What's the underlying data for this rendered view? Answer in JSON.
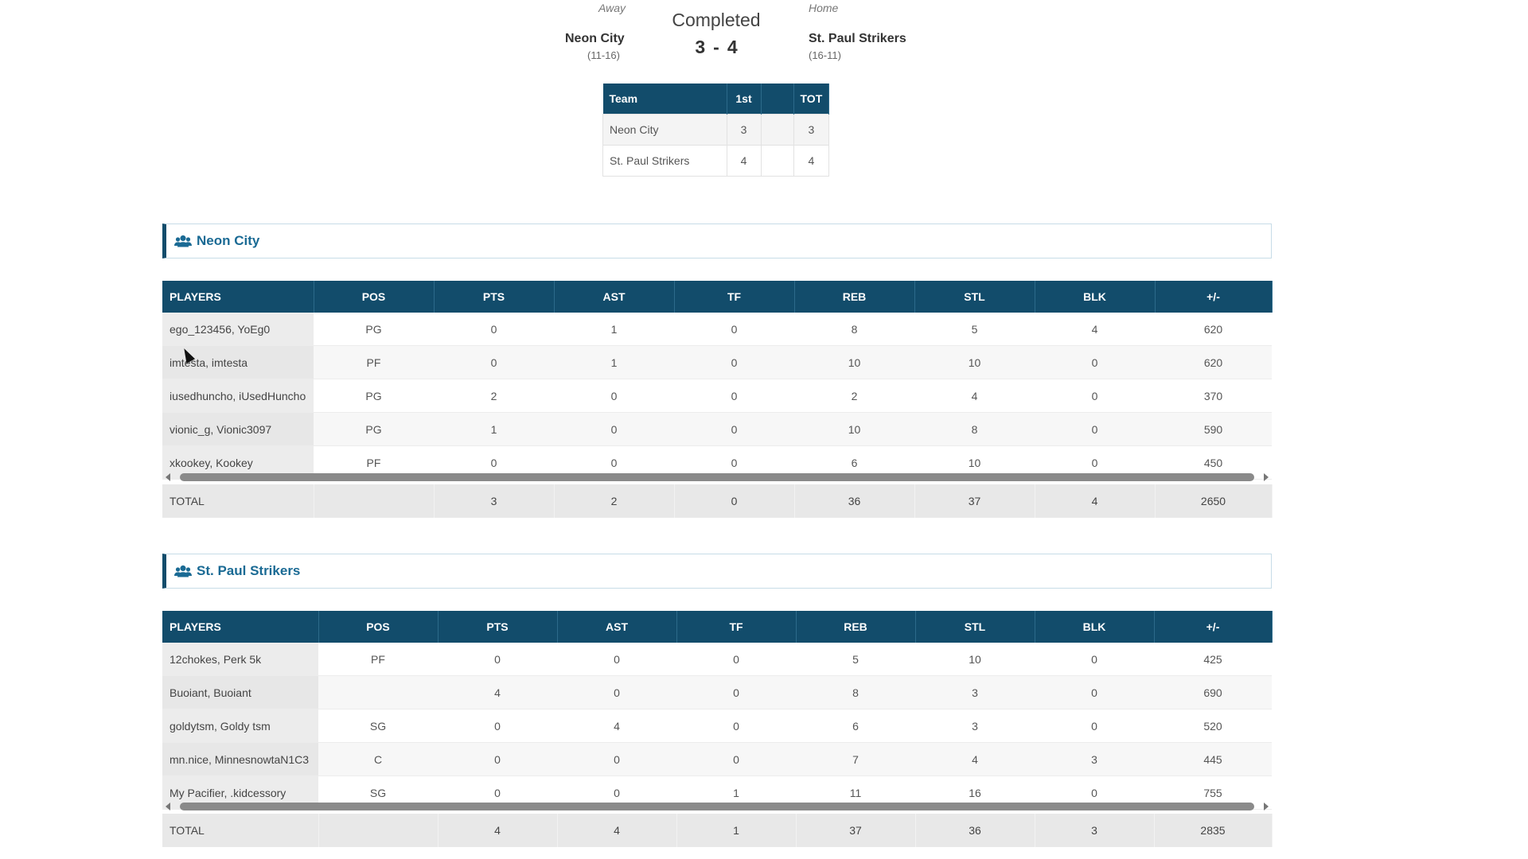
{
  "game": {
    "away_label": "Away",
    "home_label": "Home",
    "status": "Completed",
    "away_team": "Neon City",
    "away_record": "(11-16)",
    "home_team": "St. Paul Strikers",
    "home_record": "(16-11)",
    "away_score": "3",
    "home_score": "4",
    "score_sep": "-"
  },
  "linescore": {
    "headers": [
      "Team",
      "1st",
      "",
      "TOT"
    ],
    "rows": [
      [
        "Neon City",
        "3",
        "",
        "3"
      ],
      [
        "St. Paul Strikers",
        "4",
        "",
        "4"
      ]
    ]
  },
  "stat_headers": [
    "PLAYERS",
    "POS",
    "PTS",
    "AST",
    "TF",
    "REB",
    "STL",
    "BLK",
    "+/-"
  ],
  "teams": [
    {
      "name": "Neon City",
      "icon": "users-icon",
      "players": [
        [
          "ego_123456, YoEg0",
          "PG",
          "0",
          "1",
          "0",
          "8",
          "5",
          "4",
          "620"
        ],
        [
          "imtesta, imtesta",
          "PF",
          "0",
          "1",
          "0",
          "10",
          "10",
          "0",
          "620"
        ],
        [
          "iusedhuncho, iUsedHuncho",
          "PG",
          "2",
          "0",
          "0",
          "2",
          "4",
          "0",
          "370"
        ],
        [
          "vionic_g, Vionic3097",
          "PG",
          "1",
          "0",
          "0",
          "10",
          "8",
          "0",
          "590"
        ],
        [
          "xkookey, Kookey",
          "PF",
          "0",
          "0",
          "0",
          "6",
          "10",
          "0",
          "450"
        ]
      ],
      "total": [
        "TOTAL",
        "",
        "3",
        "2",
        "0",
        "36",
        "37",
        "4",
        "2650"
      ]
    },
    {
      "name": "St. Paul Strikers",
      "icon": "users-icon",
      "players": [
        [
          "12chokes, Perk 5k",
          "PF",
          "0",
          "0",
          "0",
          "5",
          "10",
          "0",
          "425"
        ],
        [
          "Buoiant, Buoiant",
          "",
          "4",
          "0",
          "0",
          "8",
          "3",
          "0",
          "690"
        ],
        [
          "goldytsm, Goldy tsm",
          "SG",
          "0",
          "4",
          "0",
          "6",
          "3",
          "0",
          "520"
        ],
        [
          "mn.nice, MinnesnowtaN1C3",
          "C",
          "0",
          "0",
          "0",
          "7",
          "4",
          "3",
          "445"
        ],
        [
          "My Pacifier, .kidcessory",
          "SG",
          "0",
          "0",
          "1",
          "11",
          "16",
          "0",
          "755"
        ]
      ],
      "total": [
        "TOTAL",
        "",
        "4",
        "4",
        "1",
        "37",
        "36",
        "3",
        "2835"
      ]
    }
  ],
  "colors": {
    "header_bg": "#124c6b",
    "team_title": "#1a6a94"
  }
}
